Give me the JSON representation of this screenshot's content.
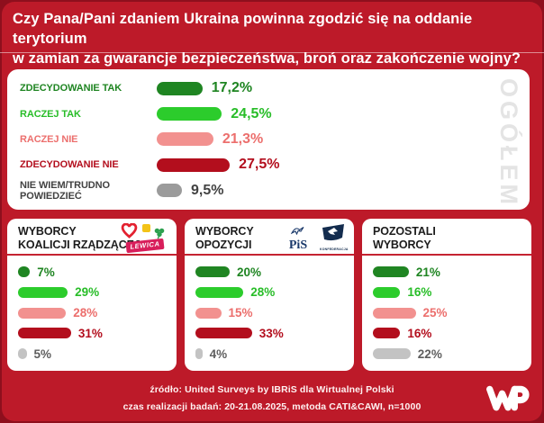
{
  "title": "Czy Pana/Pani zdaniem Ukraina powinna zgodzić się na oddanie terytorium\nw zamian za gwarancje bezpieczeństwa, broń oraz zakończenie wojny?",
  "overall": {
    "watermark": "OGÓŁEM",
    "rows": [
      {
        "label": "ZDECYDOWANIE TAK",
        "display": "17,2%",
        "value": 17.2,
        "color": "#1f8522",
        "text": "#1f8522"
      },
      {
        "label": "RACZEJ TAK",
        "display": "24,5%",
        "value": 24.5,
        "color": "#2ccc2c",
        "text": "#28bd28"
      },
      {
        "label": "RACZEJ NIE",
        "display": "21,3%",
        "value": 21.3,
        "color": "#f2918f",
        "text": "#ec6f6d"
      },
      {
        "label": "ZDECYDOWANIE NIE",
        "display": "27,5%",
        "value": 27.5,
        "color": "#b30e1d",
        "text": "#b30e1d"
      },
      {
        "label": "NIE WIEM/TRUDNO POWIEDZIEĆ",
        "display": "9,5%",
        "value": 9.5,
        "color": "#9b9b9b",
        "text": "#424242"
      }
    ]
  },
  "panels": [
    {
      "title": "WYBORCY\nKOALICJI RZĄDZĄCEJ",
      "icons": [
        "lewica-heart-icon",
        "polska2050-icon",
        "psl-clover-icon"
      ],
      "badge": "LEWICA",
      "rows": [
        {
          "display": "7%",
          "value": 7,
          "color": "#1f8522",
          "text": "#1f8522"
        },
        {
          "display": "29%",
          "value": 29,
          "color": "#2ccc2c",
          "text": "#28bd28"
        },
        {
          "display": "28%",
          "value": 28,
          "color": "#f2918f",
          "text": "#ec6f6d"
        },
        {
          "display": "31%",
          "value": 31,
          "color": "#b30e1d",
          "text": "#b30e1d"
        },
        {
          "display": "5%",
          "value": 5,
          "color": "#c3c3c3",
          "text": "#5e5e5e"
        }
      ]
    },
    {
      "title": "WYBORCY\nOPOZYCJI",
      "icons": [
        "pis-logo",
        "konfederacja-logo"
      ],
      "pis_text": "PiS",
      "konfederacja_text": "KONFEDERACJA",
      "rows": [
        {
          "display": "20%",
          "value": 20,
          "color": "#1f8522",
          "text": "#1f8522"
        },
        {
          "display": "28%",
          "value": 28,
          "color": "#2ccc2c",
          "text": "#28bd28"
        },
        {
          "display": "15%",
          "value": 15,
          "color": "#f2918f",
          "text": "#ec6f6d"
        },
        {
          "display": "33%",
          "value": 33,
          "color": "#b30e1d",
          "text": "#b30e1d"
        },
        {
          "display": "4%",
          "value": 4,
          "color": "#c3c3c3",
          "text": "#5e5e5e"
        }
      ]
    },
    {
      "title": "POZOSTALI\nWYBORCY",
      "icons": [],
      "rows": [
        {
          "display": "21%",
          "value": 21,
          "color": "#1f8522",
          "text": "#1f8522"
        },
        {
          "display": "16%",
          "value": 16,
          "color": "#2ccc2c",
          "text": "#28bd28"
        },
        {
          "display": "25%",
          "value": 25,
          "color": "#f2918f",
          "text": "#ec6f6d"
        },
        {
          "display": "16%",
          "value": 16,
          "color": "#b30e1d",
          "text": "#b30e1d"
        },
        {
          "display": "22%",
          "value": 22,
          "color": "#c3c3c3",
          "text": "#5e5e5e"
        }
      ]
    }
  ],
  "footer": {
    "source": "źródło: United Surveys by IBRiS dla Wirtualnej Polski",
    "details": "czas realizacji badań: 20-21.08.2025, metoda CATI&CAWI, n=1000",
    "logo": "wp-logo"
  },
  "colors": {
    "background": "#bd1a29",
    "background_edge": "#8e0f1d",
    "panel": "#ffffff",
    "strong_yes": "#1f8522",
    "rather_yes": "#2ccc2c",
    "rather_no": "#f2918f",
    "strong_no": "#b30e1d",
    "dont_know_gray": "#9b9b9b",
    "separator_red": "#c52331",
    "watermark_gray": "#e4e4e4"
  },
  "chart_data": {
    "type": "bar",
    "title": "Czy Pana/Pani zdaniem Ukraina powinna zgodzić się na oddanie terytorium w zamian za gwarancje bezpieczeństwa, broń oraz zakończenie wojny?",
    "categories": [
      "ZDECYDOWANIE TAK",
      "RACZEJ TAK",
      "RACZEJ NIE",
      "ZDECYDOWANIE NIE",
      "NIE WIEM/TRUDNO POWIEDZIEĆ"
    ],
    "series": [
      {
        "name": "OGÓŁEM",
        "values": [
          17.2,
          24.5,
          21.3,
          27.5,
          9.5
        ]
      },
      {
        "name": "WYBORCY KOALICJI RZĄDZĄCEJ",
        "values": [
          7,
          29,
          28,
          31,
          5
        ]
      },
      {
        "name": "WYBORCY OPOZYCJI",
        "values": [
          20,
          28,
          15,
          33,
          4
        ]
      },
      {
        "name": "POZOSTALI WYBORCY",
        "values": [
          21,
          16,
          25,
          16,
          22
        ]
      }
    ],
    "value_suffix": "%",
    "orientation": "horizontal",
    "grid": false,
    "legend_position": "none",
    "source_note": "źródło: United Surveys by IBRiS dla Wirtualnej Polski; czas realizacji badań: 20-21.08.2025, metoda CATI&CAWI, n=1000"
  }
}
